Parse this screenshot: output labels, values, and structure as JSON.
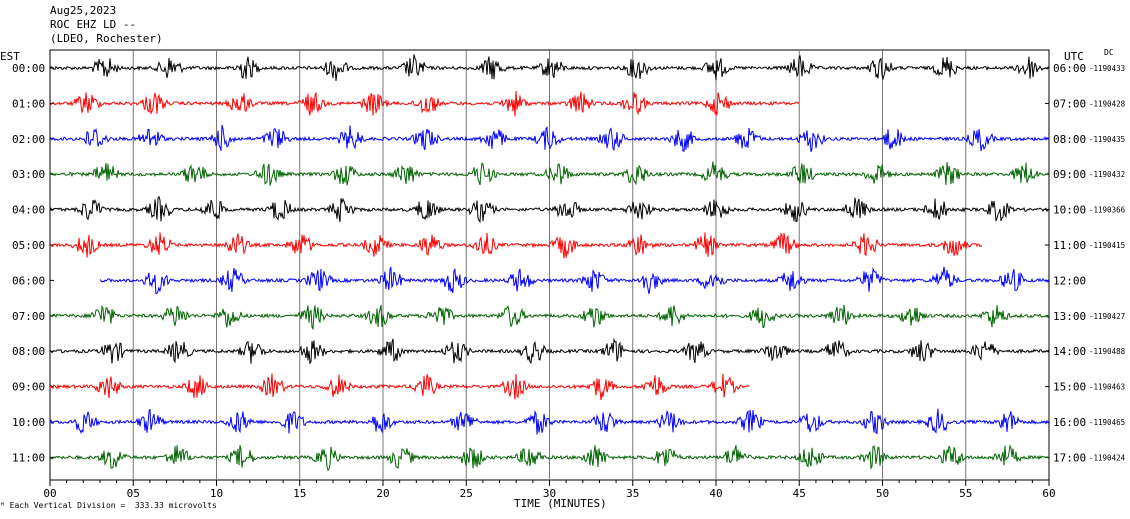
{
  "header": {
    "date": "Aug25,2023",
    "station": "ROC EHZ LD --",
    "network": "(LDEO, Rochester)"
  },
  "left_axis_label": "EST",
  "right_axis_label": "UTC",
  "dc_label": "DC",
  "scale_note": "Each Vertical Division =  333.33 microvolts",
  "chart_data": {
    "type": "line",
    "title": "",
    "xlabel": "TIME (MINUTES)",
    "ylabel": "",
    "xlim": [
      0,
      60
    ],
    "x_ticks": [
      "00",
      "05",
      "10",
      "15",
      "20",
      "25",
      "30",
      "35",
      "40",
      "45",
      "50",
      "55",
      "60"
    ],
    "grid": true,
    "legend": "none",
    "series": [
      {
        "est": "00:00",
        "utc": "06:00",
        "dc": "-1190433",
        "color": "#000000",
        "start": 0,
        "end": 60
      },
      {
        "est": "01:00",
        "utc": "07:00",
        "dc": "-1190428",
        "color": "#ff0000",
        "start": 0,
        "end": 45
      },
      {
        "est": "02:00",
        "utc": "08:00",
        "dc": "-1190435",
        "color": "#0000ff",
        "start": 0,
        "end": 60
      },
      {
        "est": "03:00",
        "utc": "09:00",
        "dc": "-1190432",
        "color": "#006400",
        "start": 0,
        "end": 60
      },
      {
        "est": "04:00",
        "utc": "10:00",
        "dc": "-1190366",
        "color": "#000000",
        "start": 0,
        "end": 60
      },
      {
        "est": "05:00",
        "utc": "11:00",
        "dc": "-1190415",
        "color": "#ff0000",
        "start": 0,
        "end": 56
      },
      {
        "est": "06:00",
        "utc": "12:00",
        "dc": "",
        "color": "#0000ff",
        "start": 3,
        "end": 60
      },
      {
        "est": "07:00",
        "utc": "13:00",
        "dc": "-1190427",
        "color": "#006400",
        "start": 0,
        "end": 60
      },
      {
        "est": "08:00",
        "utc": "14:00",
        "dc": "-1190488",
        "color": "#000000",
        "start": 0,
        "end": 60
      },
      {
        "est": "09:00",
        "utc": "15:00",
        "dc": "-1190463",
        "color": "#ff0000",
        "start": 0,
        "end": 42
      },
      {
        "est": "10:00",
        "utc": "16:00",
        "dc": "-1190465",
        "color": "#0000ff",
        "start": 0,
        "end": 60
      },
      {
        "est": "11:00",
        "utc": "17:00",
        "dc": "-1190424",
        "color": "#006400",
        "start": 0,
        "end": 60
      }
    ]
  }
}
